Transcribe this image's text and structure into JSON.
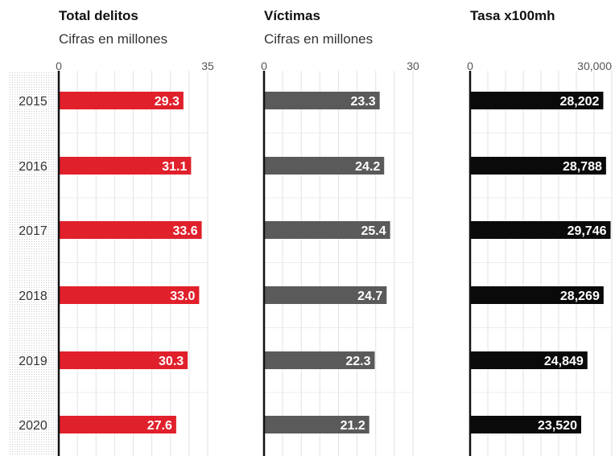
{
  "chart_data": {
    "type": "bar",
    "orientation": "horizontal",
    "categories": [
      "2015",
      "2016",
      "2017",
      "2018",
      "2019",
      "2020"
    ],
    "grid": true,
    "panels": [
      {
        "title": "Total delitos",
        "subtitle": "Cifras en millones",
        "xlim": [
          0,
          35
        ],
        "tick_labels": [
          "0",
          "35"
        ],
        "color": "#e0202b",
        "values": [
          29.3,
          31.1,
          33.6,
          33.0,
          30.3,
          27.6
        ],
        "labels": [
          "29.3",
          "31.1",
          "33.6",
          "33.0",
          "30.3",
          "27.6"
        ]
      },
      {
        "title": "Víctimas",
        "subtitle": "Cifras en millones",
        "xlim": [
          0,
          30
        ],
        "tick_labels": [
          "0",
          "30"
        ],
        "color": "#5a5a5a",
        "values": [
          23.3,
          24.2,
          25.4,
          24.7,
          22.3,
          21.2
        ],
        "labels": [
          "23.3",
          "24.2",
          "25.4",
          "24.7",
          "22.3",
          "21.2"
        ]
      },
      {
        "title": "Tasa x100mh",
        "subtitle": "",
        "xlim": [
          0,
          30000
        ],
        "tick_labels": [
          "0",
          "30,000"
        ],
        "color": "#0a0a0a",
        "values": [
          28202,
          28788,
          29746,
          28269,
          24849,
          23520
        ],
        "labels": [
          "28,202",
          "28,788",
          "29,746",
          "28,269",
          "24,849",
          "23,520"
        ]
      }
    ]
  }
}
